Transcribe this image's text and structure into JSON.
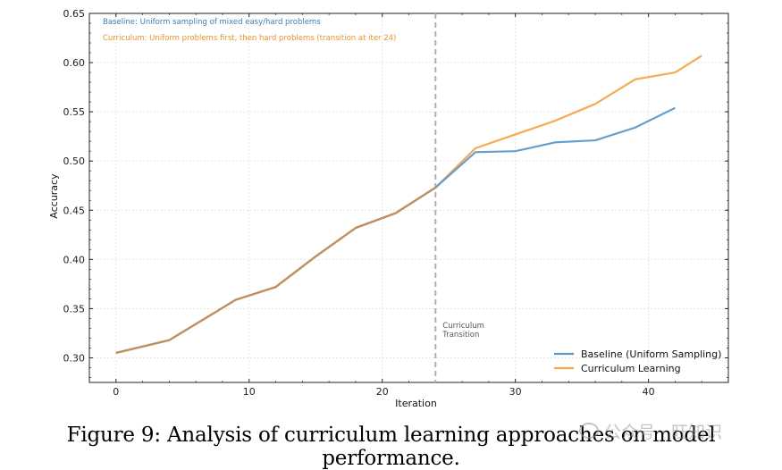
{
  "chart_data": {
    "type": "line",
    "title": "",
    "xlabel": "Iteration",
    "ylabel": "Accuracy",
    "xlim": [
      -2,
      46
    ],
    "ylim": [
      0.275,
      0.65
    ],
    "x_ticks": [
      0,
      10,
      20,
      30,
      40
    ],
    "y_ticks": [
      0.3,
      0.35,
      0.4,
      0.45,
      0.5,
      0.55,
      0.6,
      0.65
    ],
    "grid": true,
    "legend_position": "lower-right",
    "series": [
      {
        "name": "Baseline (Uniform Sampling)",
        "color": "#5b9bcc",
        "x": [
          0,
          4,
          9,
          12,
          15,
          18,
          21,
          24,
          27,
          30,
          33,
          36,
          39,
          42
        ],
        "y": [
          0.305,
          0.318,
          0.359,
          0.372,
          0.403,
          0.432,
          0.447,
          0.473,
          0.509,
          0.51,
          0.519,
          0.521,
          0.534,
          0.554
        ]
      },
      {
        "name": "Curriculum Learning",
        "color": "#f5a54a",
        "x": [
          0,
          4,
          9,
          12,
          15,
          18,
          21,
          24,
          27,
          30,
          33,
          36,
          39,
          42,
          44
        ],
        "y": [
          0.305,
          0.318,
          0.359,
          0.372,
          0.403,
          0.432,
          0.447,
          0.473,
          0.513,
          0.527,
          0.541,
          0.558,
          0.583,
          0.59,
          0.607
        ]
      }
    ],
    "vline": {
      "x": 24,
      "label_line1": "Curriculum",
      "label_line2": "Transition",
      "color": "#b0b0b0"
    },
    "annotations": [
      {
        "text": "Baseline: Uniform sampling of mixed easy/hard problems",
        "color": "#3a7fb5"
      },
      {
        "text": "Curriculum: Uniform problems first, then hard problems (transition at iter 24)",
        "color": "#e8912e"
      }
    ]
  },
  "caption": "Figure 9: Analysis of curriculum learning approaches on model performance.",
  "watermark": "公众号 · 旺知识"
}
